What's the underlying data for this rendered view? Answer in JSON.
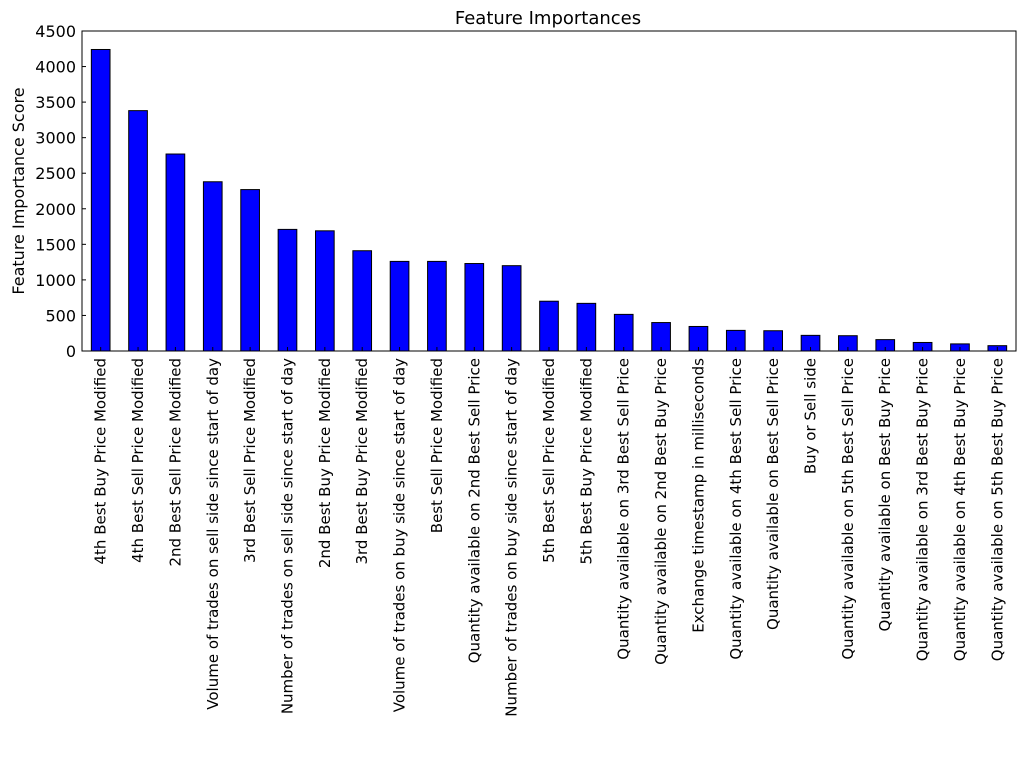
{
  "chart_data": {
    "type": "bar",
    "title": "Feature Importances",
    "xlabel": "",
    "ylabel": "Feature Importance Score",
    "ylim": [
      0,
      4500
    ],
    "yticks": [
      0,
      500,
      1000,
      1500,
      2000,
      2500,
      3000,
      3500,
      4000,
      4500
    ],
    "grid": false,
    "bar_color": "#0000ff",
    "categories": [
      "4th Best Buy Price Modified",
      "4th Best Sell Price Modified",
      "2nd Best Sell Price Modified",
      "Volume of trades on sell side since start of day",
      "3rd Best Sell Price Modified",
      "Number of trades on sell side since start of day",
      "2nd Best Buy Price Modified",
      "3rd Best Buy Price Modified",
      "Volume of trades on buy side since start of day",
      "Best Sell Price Modified",
      "Quantity available on 2nd Best Sell Price",
      "Number of trades on buy side since start of day",
      "5th Best Sell Price Modified",
      "5th Best Buy Price Modified",
      "Quantity available on 3rd Best Sell Price",
      "Quantity available on 2nd Best Buy Price",
      "Exchange timestamp in milliseconds",
      "Quantity available on 4th Best Sell Price",
      "Quantity available on Best Sell Price",
      "Buy or Sell side",
      "Quantity available on 5th Best Sell Price",
      "Quantity available on Best Buy Price",
      "Quantity available on 3rd Best Buy Price",
      "Quantity available on 4th Best Buy Price",
      "Quantity available on 5th Best Buy Price"
    ],
    "values": [
      4240,
      3380,
      2770,
      2380,
      2270,
      1710,
      1690,
      1410,
      1260,
      1260,
      1230,
      1200,
      700,
      670,
      515,
      400,
      345,
      290,
      285,
      220,
      215,
      160,
      120,
      100,
      75
    ]
  }
}
